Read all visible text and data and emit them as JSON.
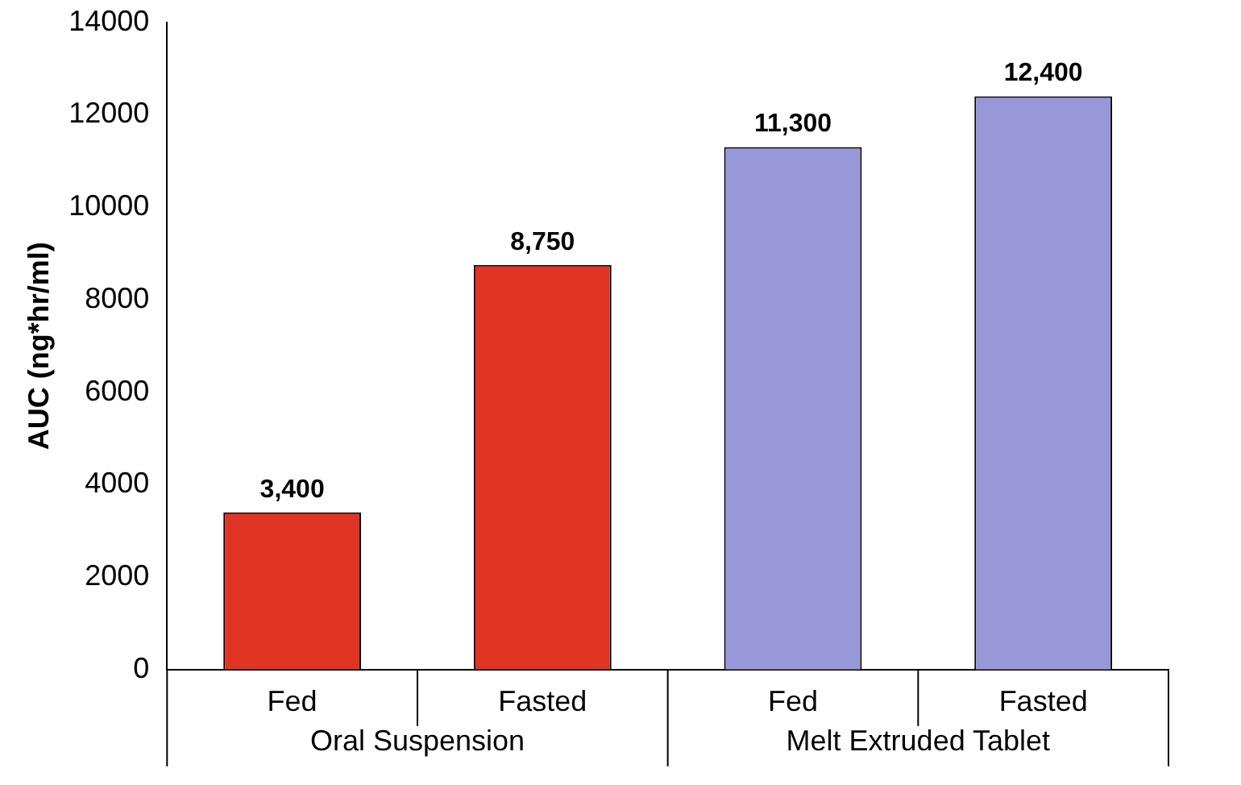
{
  "chart_data": {
    "type": "bar",
    "ylabel": "AUC (ng*hr/ml)",
    "categories": [
      "Fed",
      "Fasted",
      "Fed",
      "Fasted"
    ],
    "values": [
      3400,
      8750,
      11300,
      12400
    ],
    "colors": [
      "#e03424",
      "#e03424",
      "#9898d8",
      "#9898d8"
    ],
    "value_labels": [
      "3,400",
      "8,750",
      "11,300",
      "12,400"
    ],
    "ylim": [
      0,
      14000
    ],
    "yticks": [
      0,
      2000,
      4000,
      6000,
      8000,
      10000,
      12000,
      14000
    ],
    "annotations": [
      "Oral Suspension",
      "Melt Extruded Tablet"
    ]
  }
}
